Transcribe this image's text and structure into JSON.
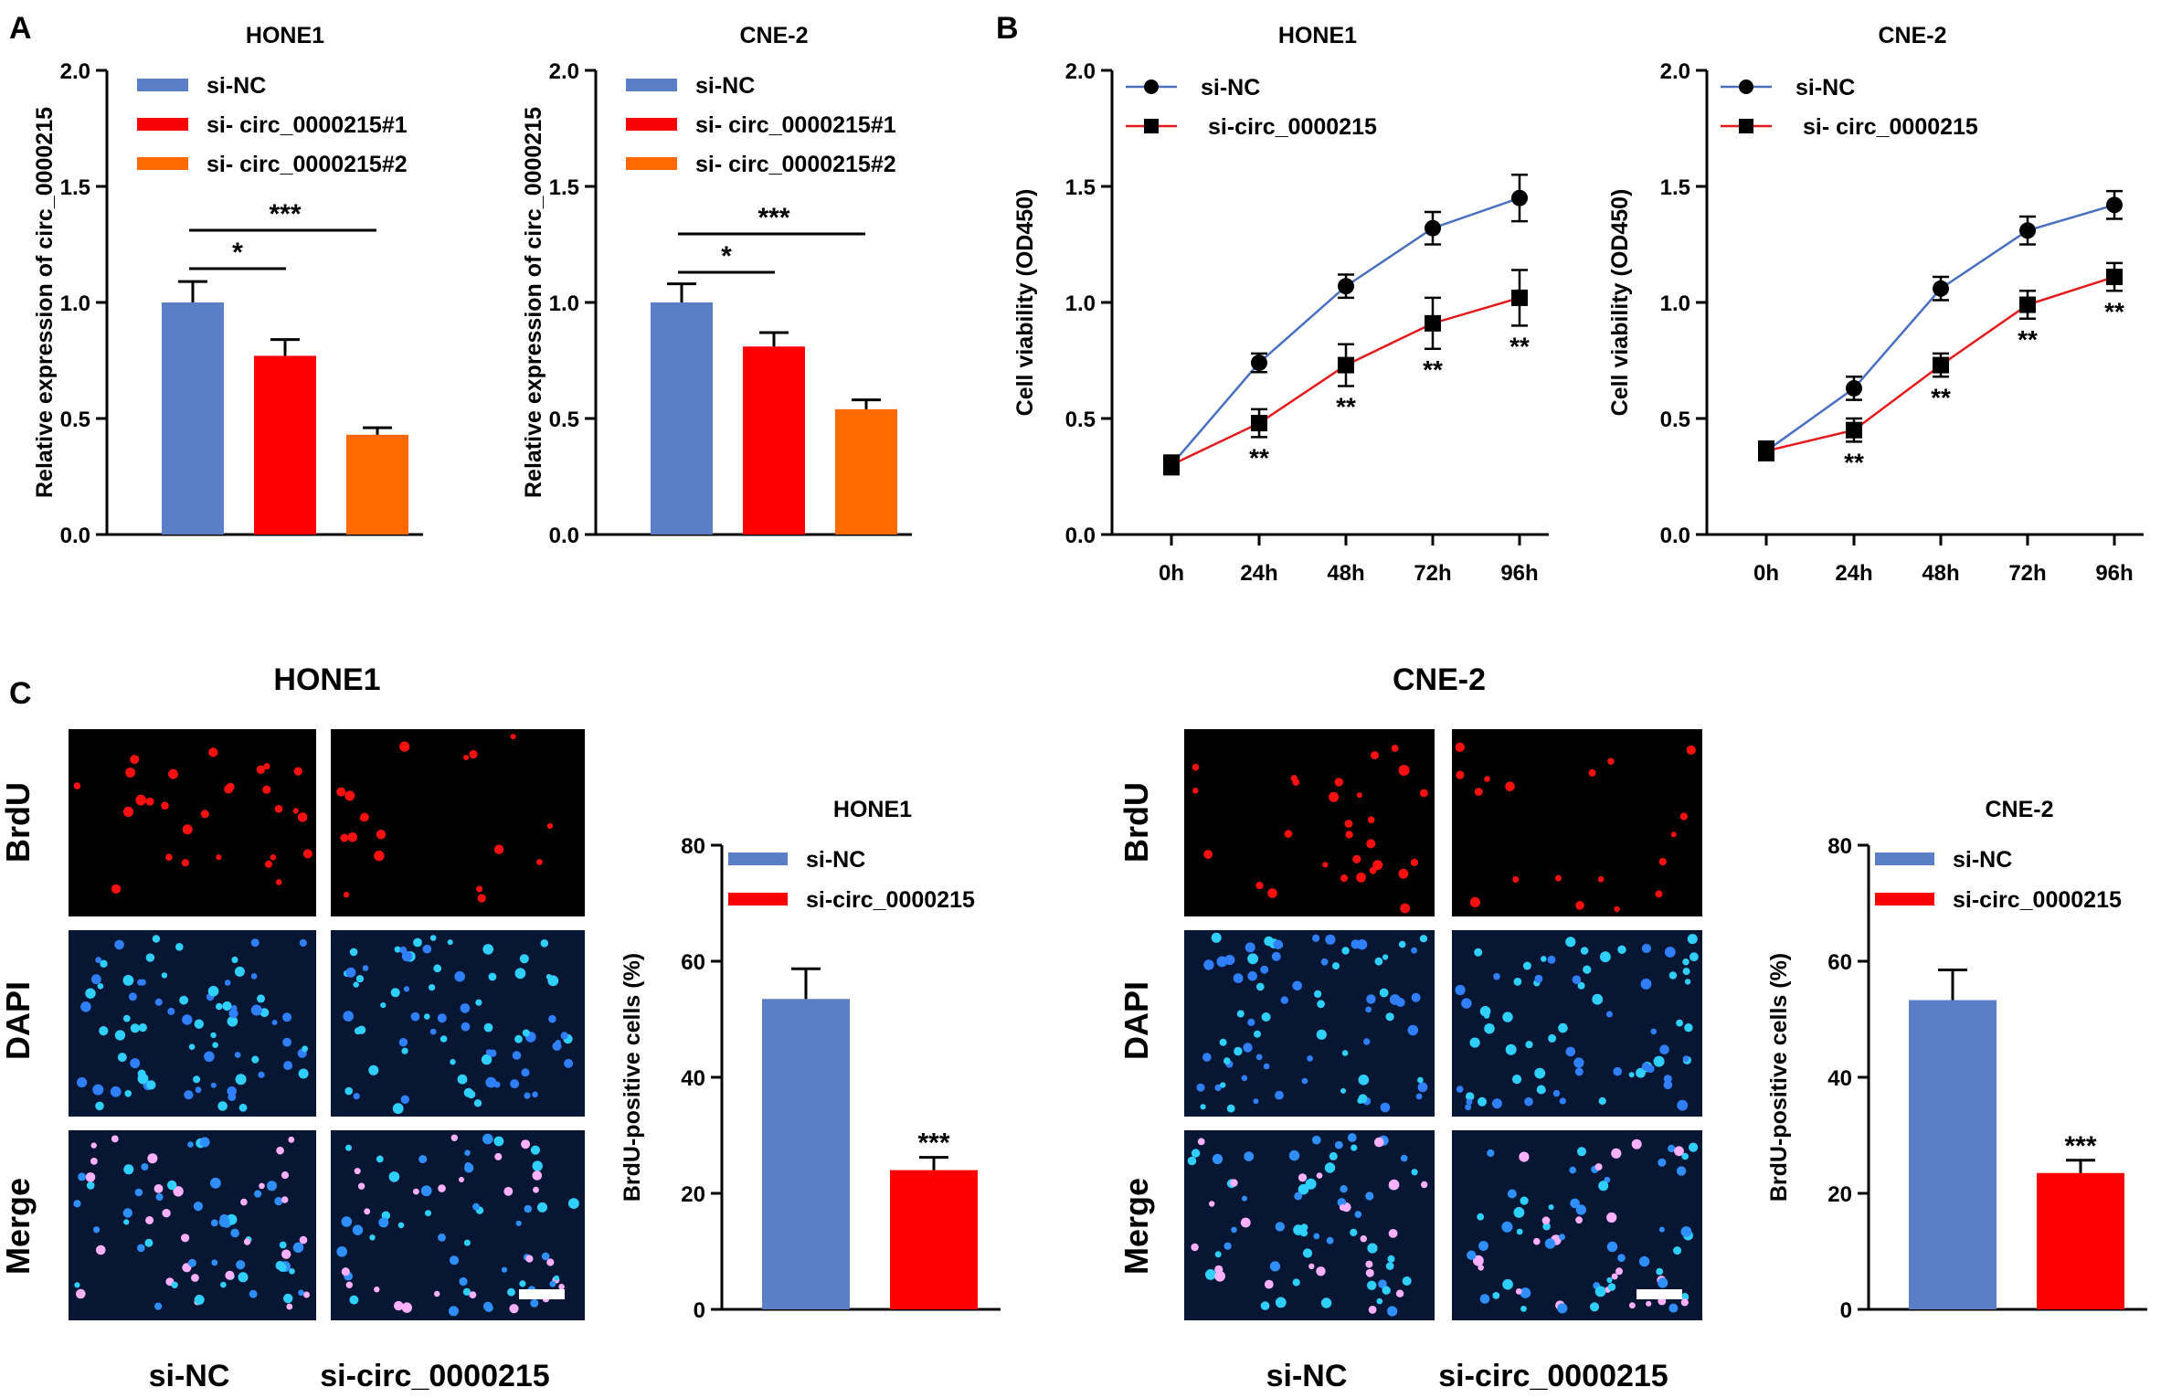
{
  "panels": {
    "A": {
      "letter": "A"
    },
    "B": {
      "letter": "B"
    },
    "C": {
      "letter": "C",
      "left_title": "HONE1",
      "right_title": "CNE-2",
      "row_labels": [
        "BrdU",
        "DAPI",
        "Merge"
      ],
      "col_labels": [
        "si-NC",
        "si-circ_0000215"
      ]
    }
  },
  "colors": {
    "blue": "#5b7fc7",
    "red": "#ff0000",
    "orange": "#ff6a00",
    "line_blue": "#4a6fc0",
    "line_red": "#e31a1c"
  },
  "chart_data": [
    {
      "id": "A-HONE1",
      "type": "bar",
      "title": "HONE1",
      "ylabel": "Relative  expression of circ_0000215",
      "ylim": [
        0,
        2.0
      ],
      "yticks": [
        "0.0",
        "0.5",
        "1.0",
        "1.5",
        "2.0"
      ],
      "categories": [
        "si-NC",
        "si- circ_0000215#1",
        "si- circ_0000215#2"
      ],
      "values": [
        1.0,
        0.77,
        0.43
      ],
      "errors": [
        0.09,
        0.07,
        0.03
      ],
      "legend": [
        "si-NC",
        "si- circ_0000215#1",
        "si- circ_0000215#2"
      ],
      "annotations": [
        "*",
        "***"
      ]
    },
    {
      "id": "A-CNE2",
      "type": "bar",
      "title": "CNE-2",
      "ylabel": "Relative  expression of circ_0000215",
      "ylim": [
        0,
        2.0
      ],
      "yticks": [
        "0.0",
        "0.5",
        "1.0",
        "1.5",
        "2.0"
      ],
      "categories": [
        "si-NC",
        "si- circ_0000215#1",
        "si- circ_0000215#2"
      ],
      "values": [
        1.0,
        0.81,
        0.54
      ],
      "errors": [
        0.08,
        0.06,
        0.04
      ],
      "legend": [
        "si-NC",
        "si- circ_0000215#1",
        "si- circ_0000215#2"
      ],
      "annotations": [
        "*",
        "***"
      ]
    },
    {
      "id": "B-HONE1",
      "type": "line",
      "title": "HONE1",
      "ylabel": "Cell viability (OD450)",
      "ylim": [
        0,
        2.0
      ],
      "yticks": [
        "0.0",
        "0.5",
        "1.0",
        "1.5",
        "2.0"
      ],
      "x": [
        "0h",
        "24h",
        "48h",
        "72h",
        "96h"
      ],
      "series": [
        {
          "name": "si-NC",
          "values": [
            0.3,
            0.74,
            1.07,
            1.32,
            1.45
          ],
          "errors": [
            0.04,
            0.04,
            0.05,
            0.07,
            0.1
          ]
        },
        {
          "name": "si-circ_0000215",
          "values": [
            0.3,
            0.48,
            0.73,
            0.91,
            1.02
          ],
          "errors": [
            0.04,
            0.06,
            0.09,
            0.11,
            0.12
          ]
        }
      ],
      "sig": [
        "",
        "**",
        "**",
        "**",
        "**"
      ]
    },
    {
      "id": "B-CNE2",
      "type": "line",
      "title": "CNE-2",
      "ylabel": "Cell viability (OD450)",
      "ylim": [
        0,
        2.0
      ],
      "yticks": [
        "0.0",
        "0.5",
        "1.0",
        "1.5",
        "2.0"
      ],
      "x": [
        "0h",
        "24h",
        "48h",
        "72h",
        "96h"
      ],
      "series": [
        {
          "name": "si-NC",
          "values": [
            0.36,
            0.63,
            1.06,
            1.31,
            1.42
          ],
          "errors": [
            0.04,
            0.05,
            0.05,
            0.06,
            0.06
          ]
        },
        {
          "name": "si- circ_0000215",
          "values": [
            0.36,
            0.45,
            0.73,
            0.99,
            1.11
          ],
          "errors": [
            0.04,
            0.05,
            0.05,
            0.06,
            0.06
          ]
        }
      ],
      "sig": [
        "",
        "**",
        "**",
        "**",
        "**"
      ]
    },
    {
      "id": "C-HONE1",
      "type": "bar",
      "title": "HONE1",
      "ylabel": "BrdU-positive cells (%)",
      "ylim": [
        0,
        80
      ],
      "yticks": [
        "0",
        "20",
        "40",
        "60",
        "80"
      ],
      "categories": [
        "si-NC",
        "si-circ_0000215"
      ],
      "values": [
        53.5,
        24.0
      ],
      "errors": [
        5.2,
        2.2
      ],
      "legend": [
        "si-NC",
        "si-circ_0000215"
      ],
      "annotations": [
        "***"
      ]
    },
    {
      "id": "C-CNE2",
      "type": "bar",
      "title": "CNE-2",
      "ylabel": "BrdU-positive cells (%)",
      "ylim": [
        0,
        80
      ],
      "yticks": [
        "0",
        "20",
        "40",
        "60",
        "80"
      ],
      "categories": [
        "si-NC",
        "si-circ_0000215"
      ],
      "values": [
        53.3,
        23.5
      ],
      "errors": [
        5.2,
        2.2
      ],
      "legend": [
        "si-NC",
        "si-circ_0000215"
      ],
      "annotations": [
        "***"
      ]
    }
  ]
}
